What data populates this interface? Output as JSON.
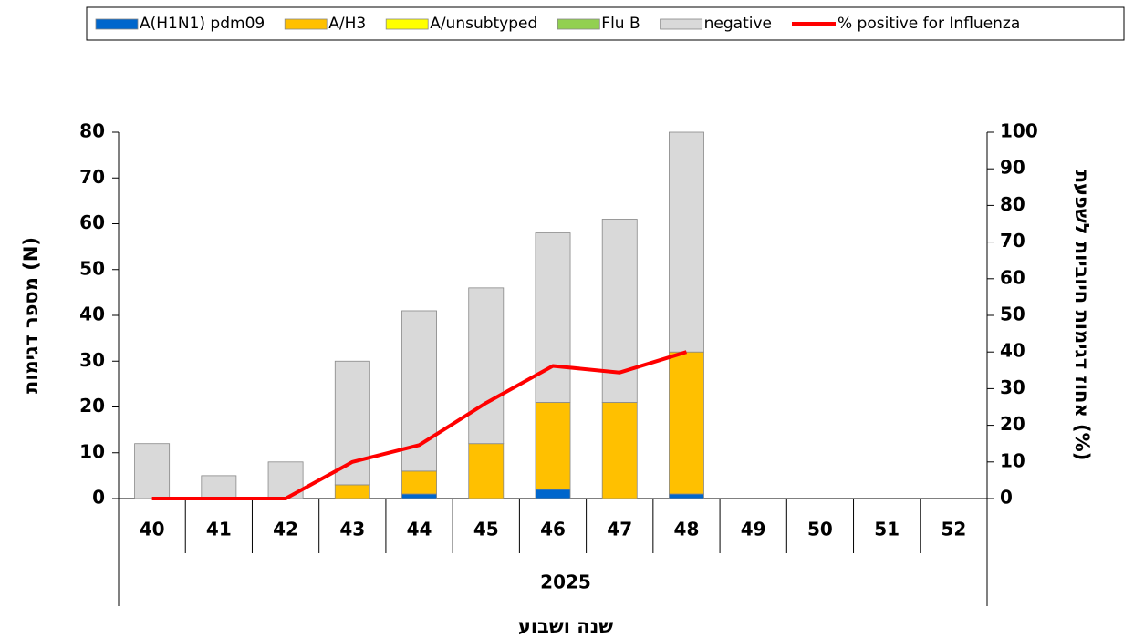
{
  "chart_data": {
    "type": "bar",
    "categories": [
      "40",
      "41",
      "42",
      "43",
      "44",
      "45",
      "46",
      "47",
      "48",
      "49",
      "50",
      "51",
      "52"
    ],
    "year": "2025",
    "xlabel": "שנה ושבוע",
    "ylabel": "מספר דגימות (N)",
    "y2label": "אחוז דגימות חיוביות לשפעת (%)",
    "stacked": true,
    "series": [
      {
        "name": "A(H1N1) pdm09",
        "color": "#0066cc",
        "values": [
          0,
          0,
          0,
          0,
          1,
          0,
          2,
          0,
          1,
          null,
          null,
          null,
          null
        ]
      },
      {
        "name": "A/H3",
        "color": "#ffc000",
        "values": [
          0,
          0,
          0,
          3,
          5,
          12,
          19,
          21,
          31,
          null,
          null,
          null,
          null
        ]
      },
      {
        "name": "A/unsubtyped",
        "color": "#ffff00",
        "values": [
          0,
          0,
          0,
          0,
          0,
          0,
          0,
          0,
          0,
          null,
          null,
          null,
          null
        ]
      },
      {
        "name": "Flu B",
        "color": "#92d050",
        "values": [
          0,
          0,
          0,
          0,
          0,
          0,
          0,
          0,
          0,
          null,
          null,
          null,
          null
        ]
      },
      {
        "name": "negative",
        "color": "#d9d9d9",
        "values": [
          12,
          5,
          8,
          27,
          35,
          34,
          37,
          40,
          48,
          null,
          null,
          null,
          null
        ]
      },
      {
        "name": "% positive for Influenza",
        "color": "#ff0000",
        "type": "line",
        "axis": "y2",
        "values": [
          0,
          0,
          0,
          10,
          14.6,
          26.1,
          36.2,
          34.4,
          40,
          null,
          null,
          null,
          null
        ]
      }
    ],
    "ylim": [
      0,
      80
    ],
    "yticks": [
      0,
      10,
      20,
      30,
      40,
      50,
      60,
      70,
      80
    ],
    "y2lim": [
      0,
      100
    ],
    "y2ticks": [
      0,
      10,
      20,
      30,
      40,
      50,
      60,
      70,
      80,
      90,
      100
    ],
    "legend": "top"
  }
}
